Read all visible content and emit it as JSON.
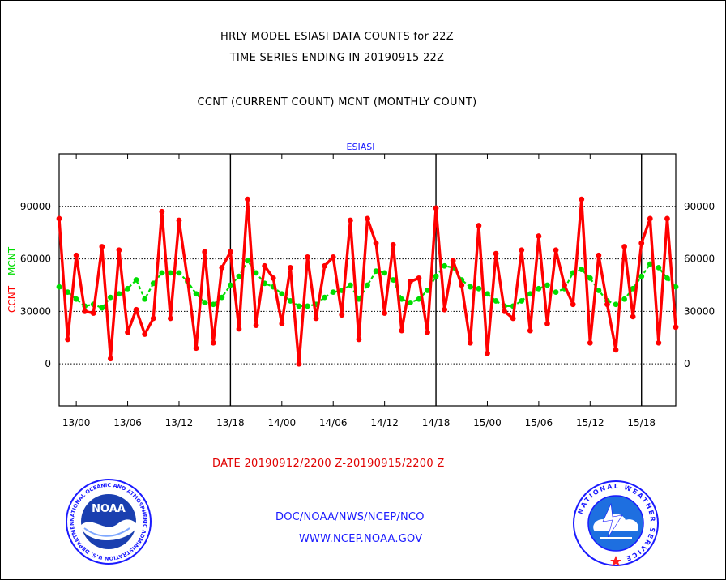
{
  "titles": {
    "line1": "HRLY MODEL ESIASI DATA COUNTS for 22Z",
    "line2": "TIME SERIES ENDING IN 20190915 22Z",
    "line3": "CCNT (CURRENT COUNT) MCNT (MONTHLY COUNT)"
  },
  "footer": {
    "date_range": "DATE 20190912/2200 Z-20190915/2200 Z",
    "org": "DOC/NOAA/NWS/NCEP/NCO",
    "url": "WWW.NCEP.NOAA.GOV"
  },
  "logos": {
    "noaa_text": "NOAA",
    "noaa_ring": "NATIONAL OCEANIC AND ATMOSPHERIC ADMINISTRATION U.S. DEPARTMENT OF COMMERCE",
    "nws_ring": "NATIONAL WEATHER SERVICE"
  },
  "colors": {
    "ccnt": "#ff0000",
    "mcnt": "#00dd00",
    "title_blue": "#1a1aff"
  },
  "chart_data": {
    "type": "line",
    "title": "ESIASI",
    "ylabel_left": [
      "CCNT",
      "MCNT"
    ],
    "y_ticks": [
      0,
      30000,
      60000,
      90000
    ],
    "y_tick_labels": [
      "0",
      "30000",
      "60000",
      "90000"
    ],
    "ylim": [
      -24000,
      120000
    ],
    "x_start": "2019-09-12 22Z",
    "x_end": "2019-09-15 22Z",
    "x_ticks": [
      "13/00",
      "13/06",
      "13/12",
      "13/18",
      "14/00",
      "14/06",
      "14/12",
      "14/18",
      "15/00",
      "15/06",
      "15/12",
      "15/18"
    ],
    "day_dividers": [
      "13/18",
      "14/18",
      "15/18"
    ],
    "grid": "horizontal dotted",
    "series": [
      {
        "name": "CCNT",
        "values": [
          83000,
          14000,
          62000,
          30000,
          29000,
          67000,
          3000,
          65000,
          18000,
          31000,
          17000,
          26000,
          87000,
          26000,
          82000,
          48000,
          9000,
          64000,
          12000,
          55000,
          64000,
          20000,
          94000,
          22000,
          56000,
          49000,
          23000,
          55000,
          0,
          61000,
          26000,
          56000,
          61000,
          28000,
          82000,
          14000,
          83000,
          69000,
          29000,
          68000,
          19000,
          47000,
          49000,
          18000,
          89000,
          31000,
          59000,
          45000,
          12000,
          79000,
          6000,
          63000,
          30000,
          26000,
          65000,
          19000,
          73000,
          23000,
          65000,
          45000,
          34000,
          94000,
          12000,
          62000,
          34000,
          8000,
          67000,
          27000,
          69000,
          83000,
          12000,
          83000,
          21000
        ]
      },
      {
        "name": "MCNT",
        "values": [
          44000,
          41000,
          37000,
          33000,
          34000,
          32000,
          38000,
          40000,
          43000,
          48000,
          37000,
          46000,
          52000,
          52000,
          52000,
          47000,
          40000,
          35000,
          34000,
          38000,
          45000,
          50000,
          59000,
          52000,
          46000,
          44000,
          40000,
          36000,
          33000,
          33000,
          34000,
          38000,
          41000,
          42000,
          45000,
          37000,
          45000,
          53000,
          52000,
          48000,
          37000,
          35000,
          37000,
          42000,
          50000,
          56000,
          55000,
          48000,
          44000,
          43000,
          40000,
          36000,
          33000,
          33000,
          36000,
          40000,
          43000,
          45000,
          41000,
          43000,
          52000,
          54000,
          49000,
          42000,
          36000,
          34000,
          37000,
          43000,
          50000,
          57000,
          55000,
          49000,
          44000
        ]
      }
    ]
  }
}
